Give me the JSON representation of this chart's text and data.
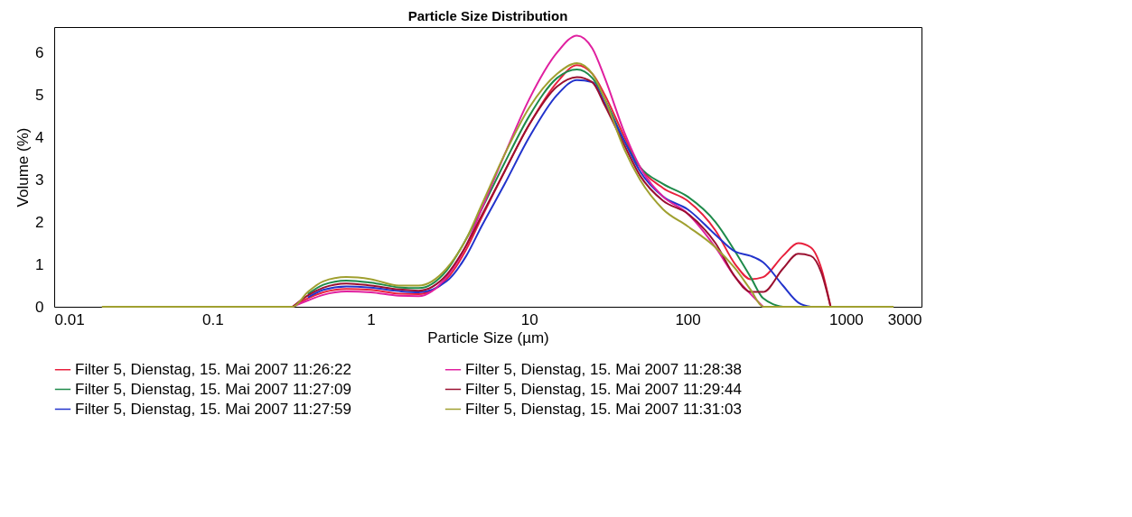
{
  "chart_data": {
    "type": "line",
    "title": "Particle Size Distribution",
    "xlabel": "Particle Size (µm)",
    "ylabel": "Volume (%)",
    "log": "x",
    "xlim": [
      0.01,
      3000
    ],
    "xticks": [
      0.01,
      0.1,
      1,
      10,
      100,
      1000,
      3000
    ],
    "ylim": [
      0,
      6.6
    ],
    "yticks": [
      0,
      1,
      2,
      3,
      4,
      5,
      6
    ],
    "grid": false,
    "legend": "bottom",
    "marker": "none",
    "line_style": "solid",
    "x": [
      0.02,
      0.1,
      0.32,
      0.4,
      0.5,
      0.7,
      1,
      1.5,
      2,
      3,
      4,
      5,
      7,
      10,
      15,
      20,
      25,
      30,
      40,
      50,
      70,
      100,
      150,
      200,
      250,
      300,
      400,
      500,
      600,
      700,
      800,
      1000,
      2000
    ],
    "series": [
      {
        "name": "Filter 5, Dienstag, 15. Mai 2007 11:26:22",
        "color": "#e8203c",
        "values": [
          null,
          null,
          0,
          0.2,
          0.34,
          0.42,
          0.4,
          0.31,
          0.3,
          0.65,
          1.35,
          2.1,
          3.2,
          4.3,
          5.3,
          5.7,
          5.5,
          5.0,
          4.0,
          3.3,
          2.8,
          2.5,
          1.8,
          1.0,
          0.65,
          0.7,
          1.2,
          1.5,
          1.4,
          0.9,
          0,
          null,
          null
        ]
      },
      {
        "name": "Filter 5, Dienstag, 15. Mai 2007 11:27:09",
        "color": "#1e8a4a",
        "values": [
          null,
          null,
          null,
          0.3,
          0.52,
          0.62,
          0.57,
          0.46,
          0.44,
          0.85,
          1.6,
          2.3,
          3.4,
          4.5,
          5.4,
          5.6,
          5.4,
          4.9,
          3.9,
          3.3,
          2.9,
          2.6,
          2.0,
          1.3,
          0.7,
          0.2,
          0,
          null,
          null,
          null,
          null,
          null,
          null
        ]
      },
      {
        "name": "Filter 5, Dienstag, 15. Mai 2007 11:27:59",
        "color": "#2233cc",
        "values": [
          null,
          null,
          null,
          0.22,
          0.4,
          0.48,
          0.45,
          0.37,
          0.34,
          0.6,
          1.2,
          1.9,
          2.9,
          4.0,
          5.0,
          5.35,
          5.3,
          4.8,
          3.9,
          3.2,
          2.6,
          2.3,
          1.7,
          1.3,
          1.2,
          1.05,
          0.5,
          0.1,
          0,
          null,
          null,
          null,
          null
        ]
      },
      {
        "name": "Filter 5, Dienstag, 15. Mai 2007 11:28:38",
        "color": "#e020a0",
        "values": [
          null,
          null,
          0,
          0.15,
          0.28,
          0.36,
          0.34,
          0.26,
          0.25,
          0.7,
          1.45,
          2.3,
          3.6,
          4.9,
          6.0,
          6.4,
          6.1,
          5.4,
          4.1,
          3.3,
          2.6,
          2.2,
          1.4,
          0.7,
          0.3,
          0,
          null,
          null,
          null,
          null,
          null,
          null,
          null
        ]
      },
      {
        "name": "Filter 5, Dienstag, 15. Mai 2007 11:29:44",
        "color": "#9a1030",
        "values": [
          null,
          null,
          0,
          0.27,
          0.45,
          0.55,
          0.5,
          0.41,
          0.38,
          0.75,
          1.45,
          2.15,
          3.2,
          4.3,
          5.2,
          5.42,
          5.3,
          4.75,
          3.8,
          3.1,
          2.5,
          2.2,
          1.5,
          0.7,
          0.35,
          0.35,
          0.9,
          1.25,
          1.2,
          0.8,
          0,
          null,
          null
        ]
      },
      {
        "name": "Filter 5, Dienstag, 15. Mai 2007 11:31:03",
        "color": "#a0a030",
        "values": [
          0,
          0,
          0,
          0.35,
          0.6,
          0.7,
          0.65,
          0.5,
          0.5,
          0.9,
          1.6,
          2.4,
          3.6,
          4.7,
          5.5,
          5.75,
          5.5,
          4.9,
          3.7,
          3.0,
          2.3,
          1.9,
          1.4,
          0.9,
          0.4,
          0,
          0,
          0,
          0,
          0,
          0,
          0,
          0
        ]
      }
    ]
  }
}
